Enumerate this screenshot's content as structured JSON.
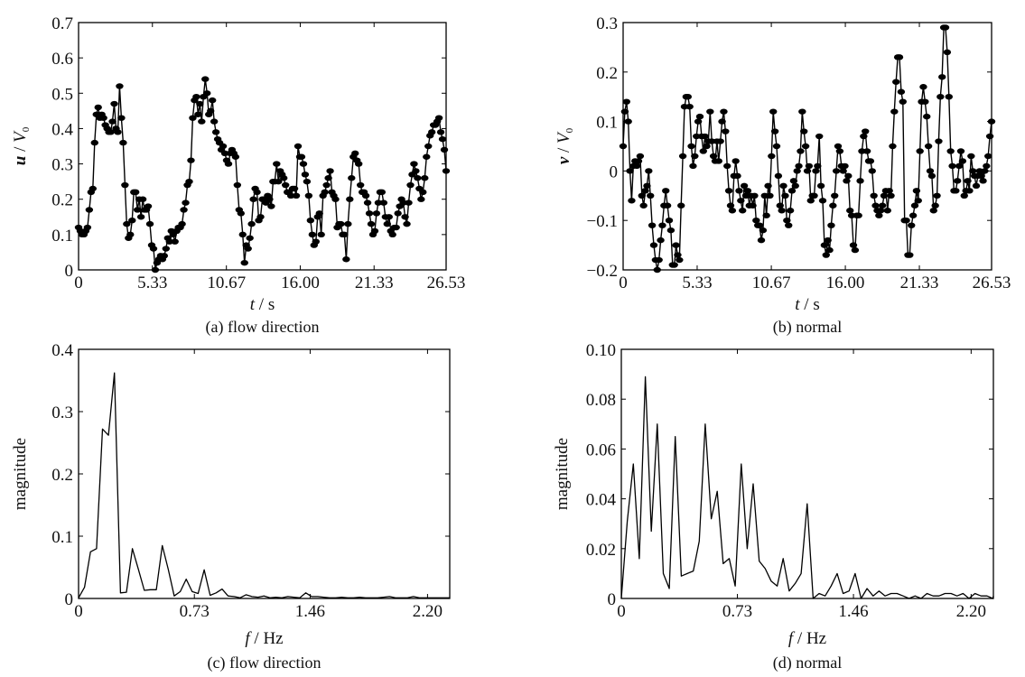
{
  "chart_data": [
    {
      "id": "a",
      "type": "line",
      "markers": true,
      "caption": "(a) flow direction",
      "xlabel_italic": "t",
      "xlabel_rest": " / s",
      "ylabel_italic_1": "u",
      "ylabel_mid": " / ",
      "ylabel_italic_2": "V",
      "ylabel_sub": "0",
      "xlim": [
        0,
        26.53
      ],
      "ylim": [
        0,
        0.7
      ],
      "xticks": [
        0,
        5.33,
        10.67,
        16.0,
        21.33,
        26.53
      ],
      "xtick_labels": [
        "0",
        "5.33",
        "10.67",
        "16.00",
        "21.33",
        "26.53"
      ],
      "yticks": [
        0,
        0.1,
        0.2,
        0.3,
        0.4,
        0.5,
        0.6,
        0.7
      ],
      "ytick_labels": [
        "0",
        "0.1",
        "0.2",
        "0.3",
        "0.4",
        "0.5",
        "0.6",
        "0.7"
      ],
      "grid": false,
      "y": [
        0.12,
        0.11,
        0.1,
        0.1,
        0.11,
        0.12,
        0.17,
        0.22,
        0.23,
        0.36,
        0.44,
        0.46,
        0.43,
        0.44,
        0.43,
        0.41,
        0.4,
        0.39,
        0.39,
        0.42,
        0.47,
        0.4,
        0.39,
        0.52,
        0.43,
        0.36,
        0.24,
        0.13,
        0.09,
        0.1,
        0.14,
        0.22,
        0.22,
        0.17,
        0.2,
        0.15,
        0.2,
        0.17,
        0.17,
        0.18,
        0.13,
        0.07,
        0.06,
        0.0,
        0.02,
        0.03,
        0.04,
        0.03,
        0.04,
        0.06,
        0.09,
        0.08,
        0.11,
        0.1,
        0.08,
        0.11,
        0.12,
        0.12,
        0.13,
        0.17,
        0.19,
        0.24,
        0.25,
        0.31,
        0.43,
        0.48,
        0.49,
        0.44,
        0.47,
        0.42,
        0.49,
        0.54,
        0.5,
        0.44,
        0.45,
        0.48,
        0.42,
        0.39,
        0.37,
        0.36,
        0.34,
        0.35,
        0.33,
        0.31,
        0.3,
        0.33,
        0.34,
        0.33,
        0.32,
        0.24,
        0.17,
        0.16,
        0.1,
        0.02,
        0.07,
        0.06,
        0.09,
        0.13,
        0.2,
        0.23,
        0.22,
        0.14,
        0.15,
        0.2,
        0.2,
        0.19,
        0.21,
        0.2,
        0.18,
        0.25,
        0.25,
        0.3,
        0.25,
        0.28,
        0.27,
        0.26,
        0.24,
        0.22,
        0.22,
        0.21,
        0.23,
        0.23,
        0.21,
        0.35,
        0.32,
        0.32,
        0.3,
        0.27,
        0.25,
        0.21,
        0.14,
        0.1,
        0.07,
        0.08,
        0.15,
        0.16,
        0.1,
        0.21,
        0.22,
        0.24,
        0.26,
        0.28,
        0.22,
        0.21,
        0.2,
        0.12,
        0.13,
        0.13,
        0.1,
        0.1,
        0.03,
        0.13,
        0.2,
        0.26,
        0.32,
        0.33,
        0.31,
        0.3,
        0.24,
        0.22,
        0.22,
        0.21,
        0.19,
        0.16,
        0.13,
        0.1,
        0.11,
        0.16,
        0.19,
        0.22,
        0.22,
        0.19,
        0.15,
        0.13,
        0.15,
        0.11,
        0.1,
        0.12,
        0.12,
        0.16,
        0.18,
        0.2,
        0.19,
        0.15,
        0.13,
        0.19,
        0.24,
        0.27,
        0.3,
        0.28,
        0.26,
        0.23,
        0.2,
        0.22,
        0.26,
        0.32,
        0.35,
        0.38,
        0.39,
        0.41,
        0.41,
        0.42,
        0.43,
        0.39,
        0.37,
        0.34,
        0.28
      ]
    },
    {
      "id": "b",
      "type": "line",
      "markers": true,
      "caption": "(b) normal",
      "xlabel_italic": "t",
      "xlabel_rest": " / s",
      "ylabel_italic_1": "v",
      "ylabel_mid": " / ",
      "ylabel_italic_2": "V",
      "ylabel_sub": "0",
      "xlim": [
        0,
        26.53
      ],
      "ylim": [
        -0.2,
        0.3
      ],
      "xticks": [
        0,
        5.33,
        10.67,
        16.0,
        21.33,
        26.53
      ],
      "xtick_labels": [
        "0",
        "5.33",
        "10.67",
        "16.00",
        "21.33",
        "26.53"
      ],
      "yticks": [
        -0.2,
        -0.1,
        0,
        0.1,
        0.2,
        0.3
      ],
      "ytick_labels": [
        "−0.2",
        "−0.1",
        "0",
        "0.1",
        "0.2",
        "0.3"
      ],
      "grid": false,
      "y": [
        0.05,
        0.12,
        0.14,
        0.1,
        0.0,
        -0.06,
        0.01,
        0.02,
        0.01,
        0.02,
        0.03,
        -0.05,
        -0.07,
        -0.04,
        -0.03,
        0.0,
        -0.05,
        -0.11,
        -0.15,
        -0.18,
        -0.2,
        -0.18,
        -0.14,
        -0.11,
        -0.07,
        -0.04,
        -0.07,
        -0.1,
        -0.12,
        -0.19,
        -0.19,
        -0.15,
        -0.17,
        -0.18,
        -0.07,
        0.03,
        0.13,
        0.15,
        0.15,
        0.13,
        0.05,
        0.01,
        0.03,
        0.07,
        0.1,
        0.11,
        0.07,
        0.04,
        0.07,
        0.05,
        0.06,
        0.12,
        0.06,
        0.03,
        0.02,
        0.06,
        0.02,
        0.06,
        0.1,
        0.12,
        0.08,
        0.01,
        -0.04,
        -0.07,
        -0.08,
        -0.01,
        0.02,
        -0.01,
        -0.04,
        -0.06,
        -0.08,
        -0.03,
        -0.05,
        -0.04,
        -0.07,
        -0.05,
        -0.07,
        -0.05,
        -0.1,
        -0.11,
        -0.11,
        -0.14,
        -0.12,
        -0.05,
        -0.09,
        -0.03,
        -0.05,
        0.03,
        0.12,
        0.08,
        0.05,
        -0.01,
        -0.07,
        -0.08,
        -0.03,
        -0.05,
        -0.1,
        -0.11,
        -0.08,
        -0.04,
        -0.02,
        -0.03,
        0.0,
        0.01,
        0.04,
        0.12,
        0.08,
        0.05,
        0.0,
        0.01,
        -0.06,
        -0.05,
        -0.05,
        0.0,
        0.01,
        0.07,
        -0.03,
        -0.06,
        -0.15,
        -0.17,
        -0.14,
        -0.16,
        -0.11,
        -0.07,
        -0.05,
        0.0,
        0.05,
        0.04,
        0.01,
        0.0,
        0.01,
        -0.02,
        -0.01,
        -0.08,
        -0.09,
        -0.15,
        -0.16,
        -0.09,
        -0.09,
        -0.02,
        0.04,
        0.07,
        0.08,
        0.04,
        0.02,
        0.02,
        0.0,
        -0.05,
        -0.07,
        -0.08,
        -0.09,
        -0.08,
        -0.07,
        -0.05,
        -0.04,
        -0.08,
        -0.04,
        -0.05,
        0.05,
        0.12,
        0.18,
        0.23,
        0.23,
        0.16,
        0.14,
        -0.1,
        -0.1,
        -0.17,
        -0.17,
        -0.11,
        -0.09,
        -0.07,
        -0.04,
        -0.06,
        0.04,
        0.14,
        0.17,
        0.14,
        0.11,
        0.05,
        0.0,
        -0.01,
        -0.08,
        -0.07,
        -0.05,
        0.06,
        0.15,
        0.19,
        0.29,
        0.29,
        0.24,
        0.15,
        0.04,
        0.01,
        -0.04,
        -0.04,
        -0.02,
        0.01,
        0.04,
        0.02,
        -0.05,
        -0.04,
        -0.02,
        -0.04,
        0.03,
        0.0,
        -0.01,
        -0.03,
        -0.01,
        0.0,
        -0.01,
        -0.02,
        0.0,
        0.01,
        0.03,
        0.07,
        0.1
      ]
    },
    {
      "id": "c",
      "type": "line",
      "markers": false,
      "caption": "(c) flow direction",
      "xlabel_italic": "f",
      "xlabel_rest": " / Hz",
      "ylabel": "magnitude",
      "xlim": [
        0,
        2.34
      ],
      "ylim": [
        0,
        0.4
      ],
      "xticks": [
        0,
        0.73,
        1.46,
        2.2
      ],
      "xtick_labels": [
        "0",
        "0.73",
        "1.46",
        "2.20"
      ],
      "yticks": [
        0,
        0.1,
        0.2,
        0.3,
        0.4
      ],
      "ytick_labels": [
        "0",
        "0.1",
        "0.2",
        "0.3",
        "0.4"
      ],
      "grid": false,
      "df": 0.0377,
      "y": [
        0.001,
        0.018,
        0.075,
        0.08,
        0.272,
        0.262,
        0.362,
        0.009,
        0.01,
        0.08,
        0.047,
        0.013,
        0.014,
        0.014,
        0.085,
        0.047,
        0.004,
        0.011,
        0.031,
        0.011,
        0.008,
        0.046,
        0.005,
        0.009,
        0.015,
        0.004,
        0.003,
        0.001,
        0.006,
        0.003,
        0.002,
        0.004,
        0.001,
        0.002,
        0.001,
        0.003,
        0.002,
        0.001,
        0.009,
        0.003,
        0.003,
        0.002,
        0.001,
        0.001,
        0.002,
        0.001,
        0.001,
        0.002,
        0.001,
        0.001,
        0.001,
        0.002,
        0.003,
        0.001,
        0.001,
        0.001,
        0.003,
        0.001,
        0.001,
        0.001,
        0.001,
        0.001,
        0.001
      ]
    },
    {
      "id": "d",
      "type": "line",
      "markers": false,
      "caption": "(d) normal",
      "xlabel_italic": "f",
      "xlabel_rest": " / Hz",
      "ylabel": "magnitude",
      "xlim": [
        0,
        2.34
      ],
      "ylim": [
        0,
        0.1
      ],
      "xticks": [
        0,
        0.73,
        1.46,
        2.2
      ],
      "xtick_labels": [
        "0",
        "0.73",
        "1.46",
        "2.20"
      ],
      "yticks": [
        0,
        0.02,
        0.04,
        0.06,
        0.08,
        0.1
      ],
      "ytick_labels": [
        "0",
        "0.02",
        "0.04",
        "0.06",
        "0.08",
        "0.10"
      ],
      "grid": false,
      "df": 0.0377,
      "y": [
        0.0,
        0.031,
        0.054,
        0.016,
        0.089,
        0.027,
        0.07,
        0.01,
        0.004,
        0.065,
        0.009,
        0.01,
        0.011,
        0.023,
        0.07,
        0.032,
        0.043,
        0.014,
        0.016,
        0.005,
        0.054,
        0.02,
        0.046,
        0.015,
        0.012,
        0.007,
        0.005,
        0.016,
        0.003,
        0.006,
        0.01,
        0.038,
        0.0,
        0.002,
        0.001,
        0.005,
        0.01,
        0.002,
        0.003,
        0.01,
        0.0,
        0.004,
        0.001,
        0.003,
        0.001,
        0.002,
        0.002,
        0.001,
        0.0,
        0.001,
        0.0,
        0.002,
        0.001,
        0.001,
        0.002,
        0.002,
        0.001,
        0.002,
        0.0,
        0.002,
        0.001,
        0.001,
        0.0,
        0.001
      ]
    }
  ]
}
